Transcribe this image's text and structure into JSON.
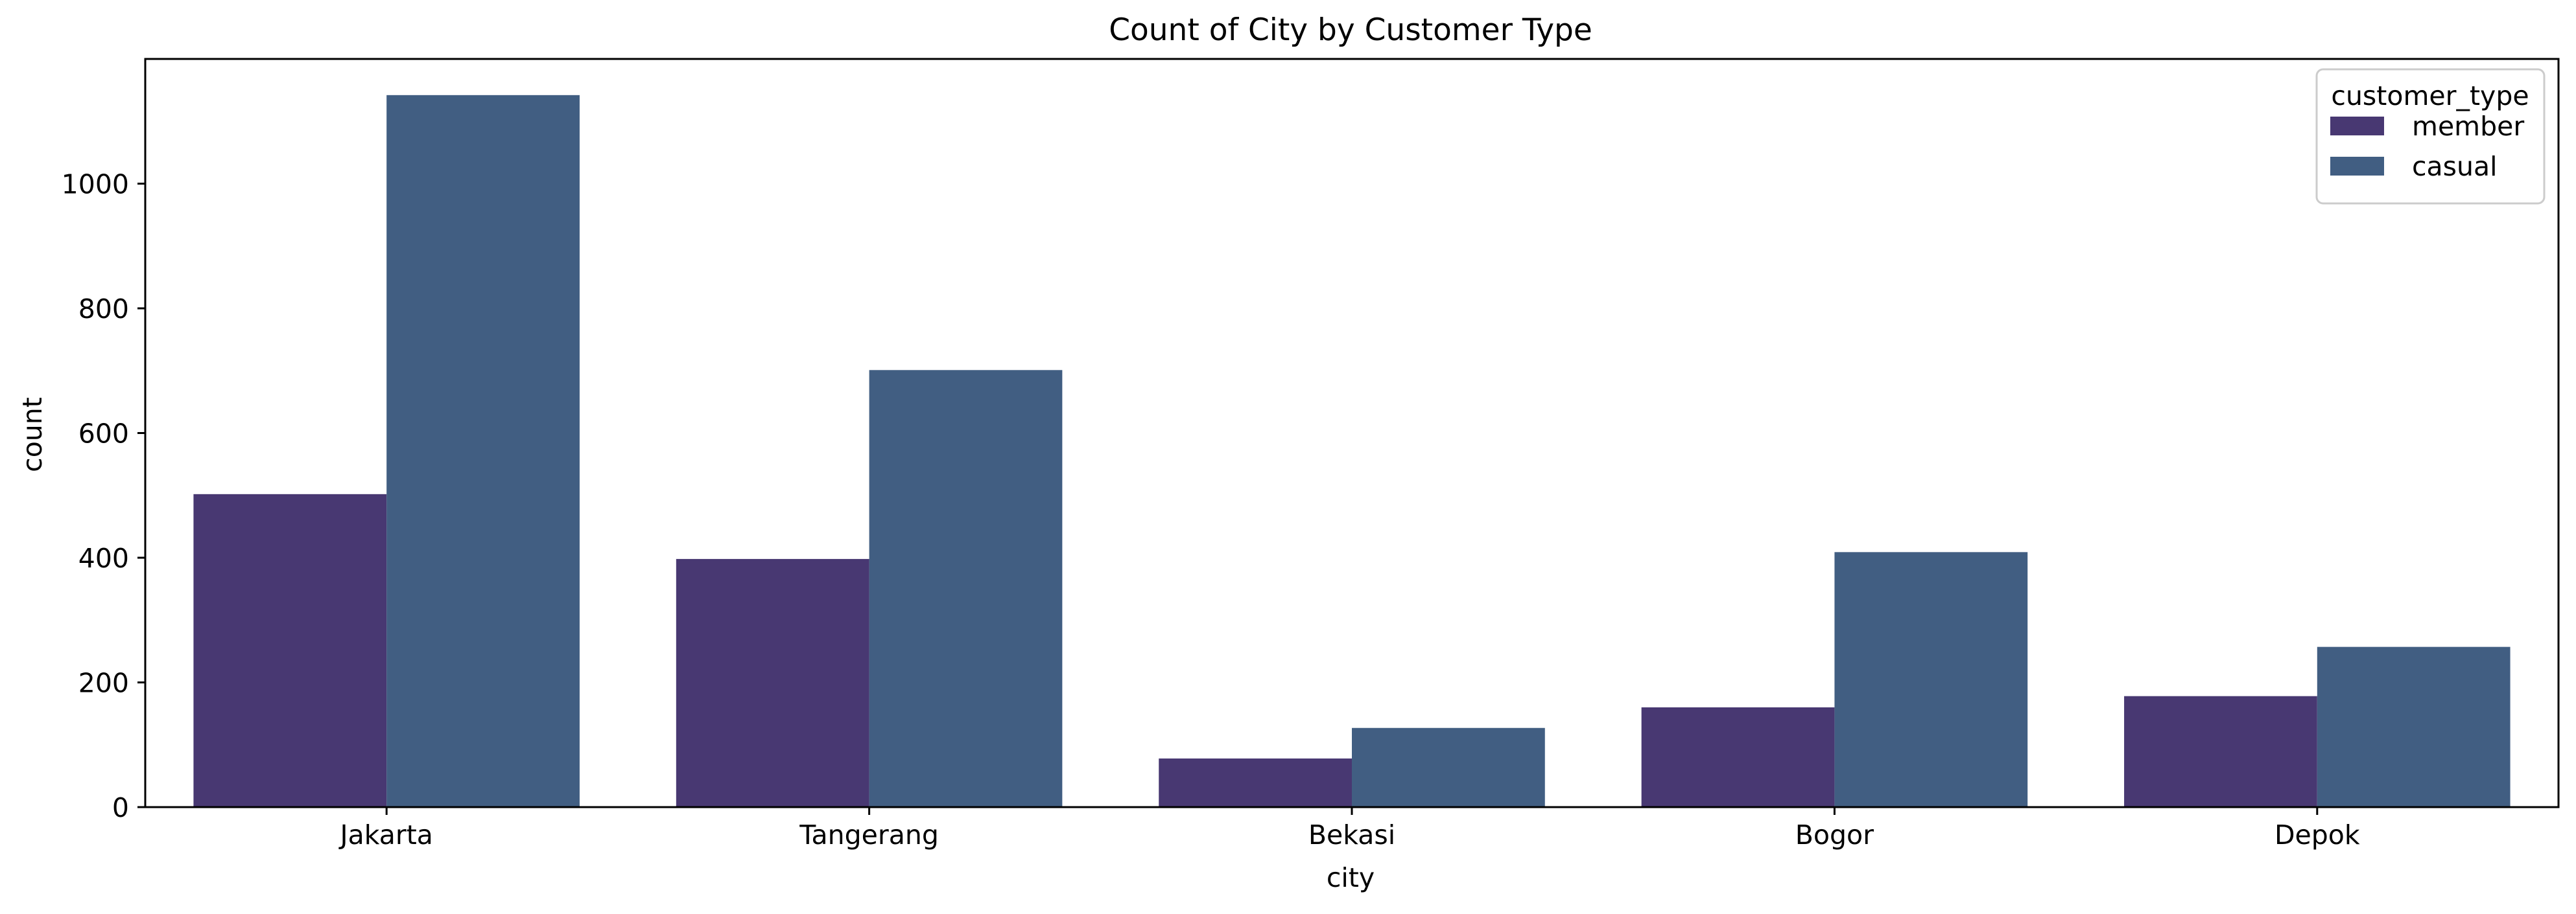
{
  "chart_data": {
    "type": "bar",
    "title": "Count of City by Customer Type",
    "xlabel": "city",
    "ylabel": "count",
    "categories": [
      "Jakarta",
      "Tangerang",
      "Bekasi",
      "Bogor",
      "Depok"
    ],
    "series": [
      {
        "name": "member",
        "color": "#483872",
        "values": [
          502,
          398,
          78,
          160,
          178
        ]
      },
      {
        "name": "casual",
        "color": "#415e82",
        "values": [
          1142,
          701,
          127,
          409,
          257
        ]
      }
    ],
    "ylim": [
      0,
      1200
    ],
    "yticks": [
      0,
      200,
      400,
      600,
      800,
      1000
    ],
    "grid": false,
    "legend": {
      "title": "customer_type",
      "placement": "top-right"
    }
  }
}
